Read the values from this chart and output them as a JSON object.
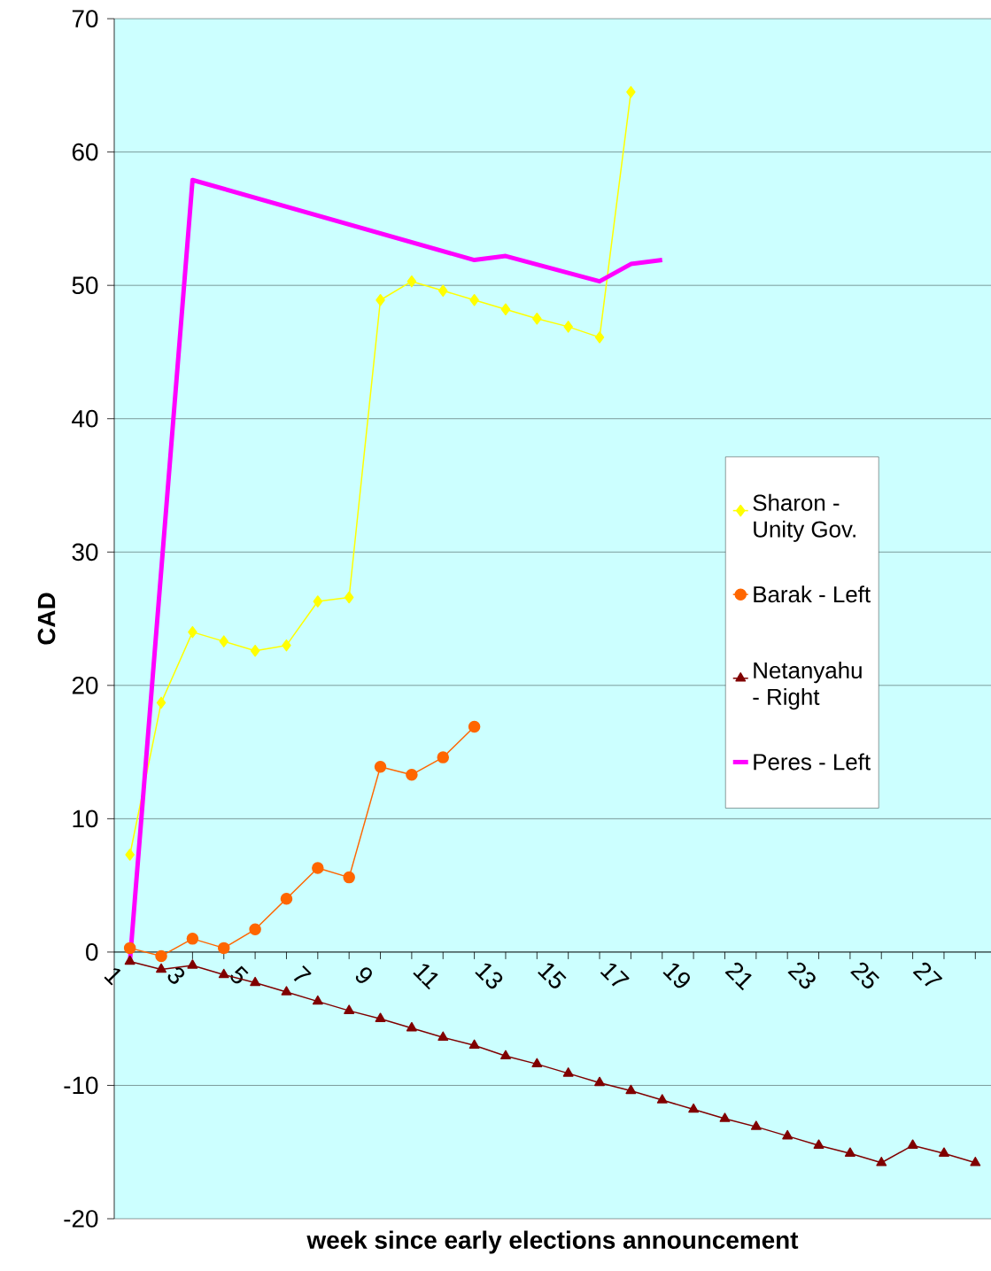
{
  "chart_data": {
    "type": "line",
    "xlabel": "week since early elections announcement",
    "ylabel": "CAD",
    "x": [
      1,
      2,
      3,
      4,
      5,
      6,
      7,
      8,
      9,
      10,
      11,
      12,
      13,
      14,
      15,
      16,
      17,
      18,
      19,
      20,
      21,
      22,
      23,
      24,
      25,
      26,
      27,
      28
    ],
    "xlim": [
      0.5,
      28.5
    ],
    "xticks": [
      1,
      {
        "value": 2,
        "label": null
      },
      3,
      {
        "value": 4,
        "label": null
      },
      5,
      {
        "value": 6,
        "label": null
      },
      7,
      {
        "value": 8,
        "label": null
      },
      9,
      {
        "value": 10,
        "label": null
      },
      11,
      {
        "value": 12,
        "label": null
      },
      13,
      {
        "value": 14,
        "label": null
      },
      15,
      {
        "value": 16,
        "label": null
      },
      17,
      {
        "value": 18,
        "label": null
      },
      19,
      {
        "value": 20,
        "label": null
      },
      21,
      {
        "value": 22,
        "label": null
      },
      23,
      {
        "value": 24,
        "label": null
      },
      25,
      {
        "value": 26,
        "label": null
      },
      27,
      {
        "value": 28,
        "label": null
      }
    ],
    "ylim": [
      -20,
      70
    ],
    "yticks": [
      -20,
      -10,
      0,
      10,
      20,
      30,
      40,
      50,
      60,
      70
    ],
    "grid": "y",
    "legend": "right",
    "series": [
      {
        "name": "Sharon - Unity Gov.",
        "color": "#ffff00",
        "marker": "diamond",
        "values": [
          7.3,
          18.7,
          24.0,
          23.3,
          22.6,
          23.0,
          26.3,
          26.6,
          48.9,
          50.3,
          49.6,
          48.9,
          48.2,
          47.5,
          46.9,
          46.1,
          64.5,
          null,
          null,
          null,
          null,
          null,
          null,
          null,
          null,
          null,
          null,
          null
        ]
      },
      {
        "name": "Barak - Left",
        "color": "#ff6600",
        "marker": "circle",
        "values": [
          0.3,
          -0.3,
          1.0,
          0.3,
          1.7,
          4.0,
          6.3,
          5.6,
          13.9,
          13.3,
          14.6,
          16.9,
          null,
          null,
          null,
          null,
          null,
          null,
          null,
          null,
          null,
          null,
          null,
          null,
          null,
          null,
          null,
          null
        ]
      },
      {
        "name": "Netanyahu - Right",
        "color": "#800000",
        "marker": "triangle",
        "values": [
          -0.7,
          -1.3,
          -1.0,
          -1.7,
          -2.3,
          -3.0,
          -3.7,
          -4.4,
          -5.0,
          -5.7,
          -6.4,
          -7.0,
          -7.8,
          -8.4,
          -9.1,
          -9.8,
          -10.4,
          -11.1,
          -11.8,
          -12.5,
          -13.1,
          -13.8,
          -14.5,
          -15.1,
          -15.8,
          -14.5,
          -15.1,
          -15.8
        ]
      },
      {
        "name": "Peres - Left",
        "color": "#ff00ff",
        "marker": "none",
        "values": [
          -0.7,
          null,
          57.9,
          null,
          null,
          null,
          null,
          null,
          null,
          null,
          null,
          51.9,
          52.2,
          null,
          null,
          50.3,
          51.6,
          51.9,
          null,
          null,
          null,
          null,
          null,
          null,
          null,
          null,
          null,
          null
        ]
      }
    ]
  }
}
